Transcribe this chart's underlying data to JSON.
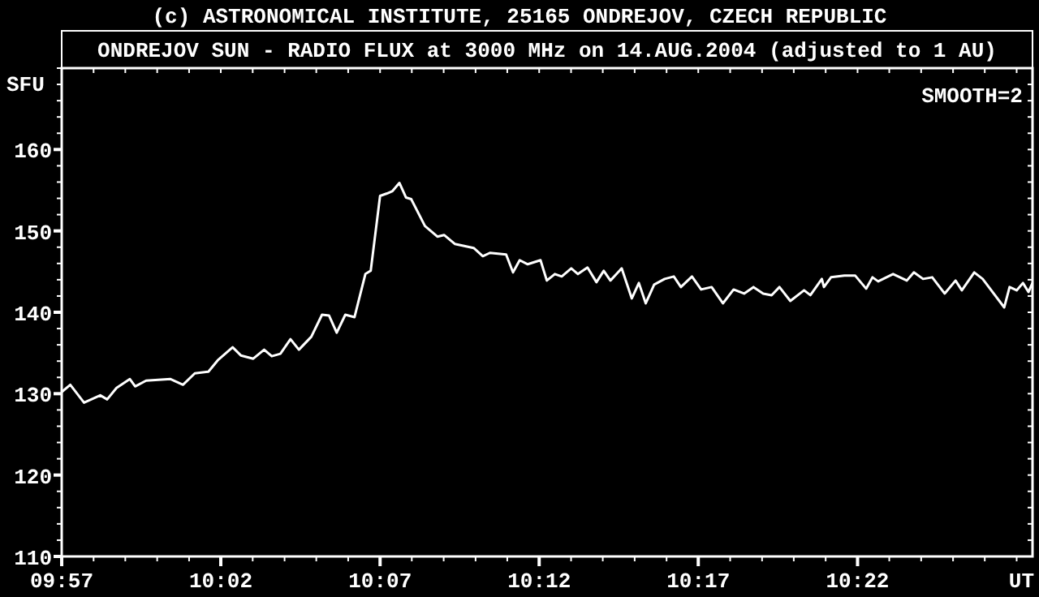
{
  "chart_data": {
    "type": "line",
    "title": "ONDREJOV SUN - RADIO FLUX at 3000 MHz on 14.AUG.2004 (adjusted to 1 AU)",
    "ylabel": "SFU",
    "xlabel": "UT",
    "annotations": [
      "(c) ASTRONOMICAL INSTITUTE, 25165 ONDREJOV, CZECH REPUBLIC",
      "SMOOTH=2"
    ],
    "x": [
      9.95,
      9.9545,
      9.9617,
      9.9702,
      9.9738,
      9.9787,
      9.9857,
      9.9885,
      9.9942,
      10.007,
      10.0135,
      10.0197,
      10.0268,
      10.0317,
      10.0395,
      10.0438,
      10.0503,
      10.056,
      10.06,
      10.0645,
      10.0698,
      10.0742,
      10.0807,
      10.0863,
      10.09,
      10.094,
      10.0985,
      10.1033,
      10.109,
      10.1118,
      10.1167,
      10.1203,
      10.1232,
      10.1268,
      10.1303,
      10.133,
      10.1402,
      10.1467,
      10.1502,
      10.1558,
      10.1657,
      10.1705,
      10.1742,
      10.1827,
      10.1863,
      10.1898,
      10.194,
      10.2007,
      10.204,
      10.2082,
      10.2118,
      10.2168,
      10.2203,
      10.2253,
      10.23,
      10.2338,
      10.2373,
      10.2432,
      10.2485,
      10.2522,
      10.2558,
      10.2602,
      10.2657,
      10.2705,
      10.2742,
      10.28,
      10.2848,
      10.2903,
      10.2962,
      10.3018,
      10.3073,
      10.3122,
      10.3173,
      10.3217,
      10.3258,
      10.3315,
      10.3387,
      10.342,
      10.348,
      10.3491,
      10.3528,
      10.3598,
      10.3655,
      10.3712,
      10.3745,
      10.3775,
      10.3853,
      10.3925,
      10.3962,
      10.401,
      10.4058,
      10.4123,
      10.418,
      10.4213,
      10.4278,
      10.4322,
      10.4435,
      10.4463,
      10.45,
      10.4533,
      10.4562,
      10.4583
    ],
    "series": [
      {
        "color": "#ffffff",
        "values": [
          130.2,
          131.1,
          128.9,
          129.8,
          129.3,
          130.7,
          131.8,
          130.9,
          131.6,
          131.8,
          131.1,
          132.5,
          132.7,
          134.1,
          135.7,
          134.7,
          134.3,
          135.4,
          134.6,
          134.9,
          136.7,
          135.4,
          137.0,
          139.7,
          139.6,
          137.5,
          139.7,
          139.4,
          144.7,
          145.1,
          154.3,
          154.6,
          154.9,
          155.9,
          154.1,
          153.9,
          150.6,
          149.3,
          149.5,
          148.4,
          147.9,
          146.9,
          147.3,
          147.1,
          144.9,
          146.4,
          145.9,
          146.4,
          143.9,
          144.7,
          144.4,
          145.4,
          144.7,
          145.5,
          143.7,
          145.1,
          143.9,
          145.4,
          141.7,
          143.6,
          141.1,
          143.4,
          144.1,
          144.4,
          143.1,
          144.4,
          142.8,
          143.1,
          141.1,
          142.8,
          142.3,
          143.1,
          142.3,
          142.1,
          143.1,
          141.4,
          142.7,
          142.1,
          144.1,
          143.1,
          144.3,
          144.5,
          144.5,
          142.9,
          144.3,
          143.8,
          144.7,
          143.9,
          144.9,
          144.1,
          144.3,
          142.3,
          143.9,
          142.7,
          144.9,
          144.1,
          140.6,
          143.1,
          142.7,
          143.6,
          142.5,
          143.6
        ]
      }
    ],
    "xlim": [
      9.95,
      10.4583
    ],
    "xticks": [
      {
        "value": 9.95,
        "label": "09:57"
      },
      {
        "value": 9.9667,
        "label": null
      },
      {
        "value": 9.9833,
        "label": null
      },
      {
        "value": 10.0,
        "label": null
      },
      {
        "value": 10.0167,
        "label": null
      },
      {
        "value": 10.0333,
        "label": "10:02"
      },
      {
        "value": 10.05,
        "label": null
      },
      {
        "value": 10.0667,
        "label": null
      },
      {
        "value": 10.0833,
        "label": null
      },
      {
        "value": 10.1,
        "label": null
      },
      {
        "value": 10.1167,
        "label": "10:07"
      },
      {
        "value": 10.1333,
        "label": null
      },
      {
        "value": 10.15,
        "label": null
      },
      {
        "value": 10.1667,
        "label": null
      },
      {
        "value": 10.1833,
        "label": null
      },
      {
        "value": 10.2,
        "label": "10:12"
      },
      {
        "value": 10.2167,
        "label": null
      },
      {
        "value": 10.2333,
        "label": null
      },
      {
        "value": 10.25,
        "label": null
      },
      {
        "value": 10.2667,
        "label": null
      },
      {
        "value": 10.2833,
        "label": "10:17"
      },
      {
        "value": 10.3,
        "label": null
      },
      {
        "value": 10.3167,
        "label": null
      },
      {
        "value": 10.3333,
        "label": null
      },
      {
        "value": 10.35,
        "label": null
      },
      {
        "value": 10.3667,
        "label": "10:22"
      },
      {
        "value": 10.3833,
        "label": null
      },
      {
        "value": 10.4,
        "label": null
      },
      {
        "value": 10.4167,
        "label": null
      },
      {
        "value": 10.4333,
        "label": null
      },
      {
        "value": 10.45,
        "label": null
      }
    ],
    "ylim": [
      110,
      170
    ],
    "yticks": [
      110,
      {
        "value": 112,
        "label": null
      },
      {
        "value": 114,
        "label": null
      },
      {
        "value": 116,
        "label": null
      },
      {
        "value": 118,
        "label": null
      },
      120,
      {
        "value": 122,
        "label": null
      },
      {
        "value": 124,
        "label": null
      },
      {
        "value": 126,
        "label": null
      },
      {
        "value": 128,
        "label": null
      },
      130,
      {
        "value": 132,
        "label": null
      },
      {
        "value": 134,
        "label": null
      },
      {
        "value": 136,
        "label": null
      },
      {
        "value": 138,
        "label": null
      },
      140,
      {
        "value": 142,
        "label": null
      },
      {
        "value": 144,
        "label": null
      },
      {
        "value": 146,
        "label": null
      },
      {
        "value": 148,
        "label": null
      },
      150,
      {
        "value": 152,
        "label": null
      },
      {
        "value": 154,
        "label": null
      },
      {
        "value": 156,
        "label": null
      },
      {
        "value": 158,
        "label": null
      },
      160,
      {
        "value": 162,
        "label": null
      },
      {
        "value": 164,
        "label": null
      },
      {
        "value": 166,
        "label": null
      },
      {
        "value": 168,
        "label": null
      },
      {
        "value": 170,
        "label": null
      }
    ],
    "grid": false,
    "line_style": "solid",
    "marker": "none"
  }
}
